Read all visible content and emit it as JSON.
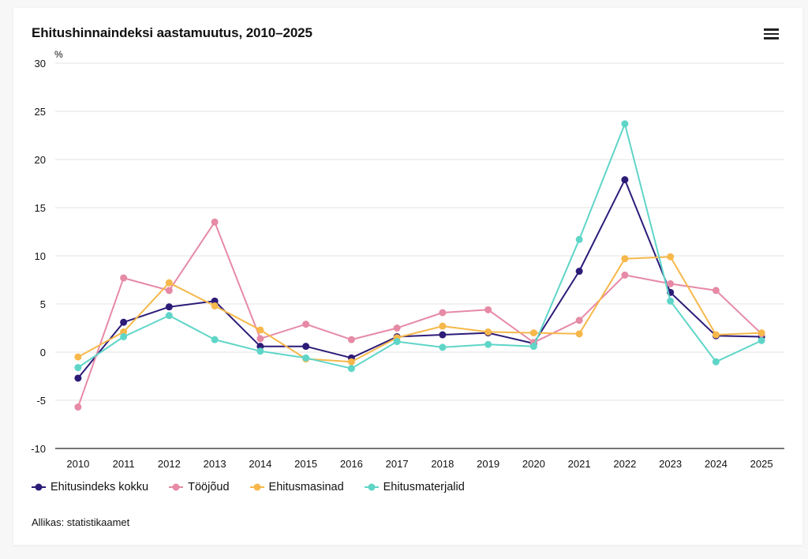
{
  "title": "Ehitushinnaindeksi aastamuutus, 2010–2025",
  "menu_icon": "hamburger-menu-icon",
  "source": "Allikas: statistikaamet",
  "chart_data": {
    "type": "line",
    "title": "Ehitushinnaindeksi aastamuutus, 2010–2025",
    "xlabel": "",
    "ylabel": "%",
    "ylim": [
      -10,
      30
    ],
    "yticks": [
      30,
      25,
      20,
      15,
      10,
      5,
      0,
      -5,
      -10
    ],
    "ytick_labels": [
      "30",
      "25",
      "20",
      "15",
      "10",
      "5",
      "0",
      "-5",
      "-10"
    ],
    "grid": true,
    "legend_position": "bottom-left",
    "categories": [
      "2010",
      "2011",
      "2012",
      "2013",
      "2014",
      "2015",
      "2016",
      "2017",
      "2018",
      "2019",
      "2020",
      "2021",
      "2022",
      "2023",
      "2024",
      "2025"
    ],
    "series": [
      {
        "name": "Ehitusindeks kokku",
        "color": "#2d1b78",
        "values": [
          -2.7,
          3.1,
          4.7,
          5.3,
          0.6,
          0.6,
          -0.6,
          1.6,
          1.8,
          2.0,
          0.9,
          8.4,
          17.9,
          6.2,
          1.7,
          1.6
        ]
      },
      {
        "name": "Tööjõud",
        "color": "#e68aa6",
        "values": [
          -5.7,
          7.7,
          6.4,
          13.5,
          1.4,
          2.9,
          1.3,
          2.5,
          4.1,
          4.4,
          1.0,
          3.3,
          8.0,
          7.1,
          6.4,
          1.9
        ]
      },
      {
        "name": "Ehitusmasinad",
        "color": "#f6b84b",
        "values": [
          -0.5,
          2.1,
          7.2,
          4.8,
          2.3,
          -0.7,
          -1.0,
          1.5,
          2.7,
          2.1,
          2.0,
          1.9,
          9.7,
          9.9,
          1.8,
          2.0
        ]
      },
      {
        "name": "Ehitusmaterjalid",
        "color": "#5fd5c8",
        "values": [
          -1.6,
          1.6,
          3.8,
          1.3,
          0.1,
          -0.6,
          -1.7,
          1.1,
          0.5,
          0.8,
          0.6,
          11.7,
          23.7,
          5.3,
          -1.0,
          1.2
        ]
      }
    ]
  }
}
